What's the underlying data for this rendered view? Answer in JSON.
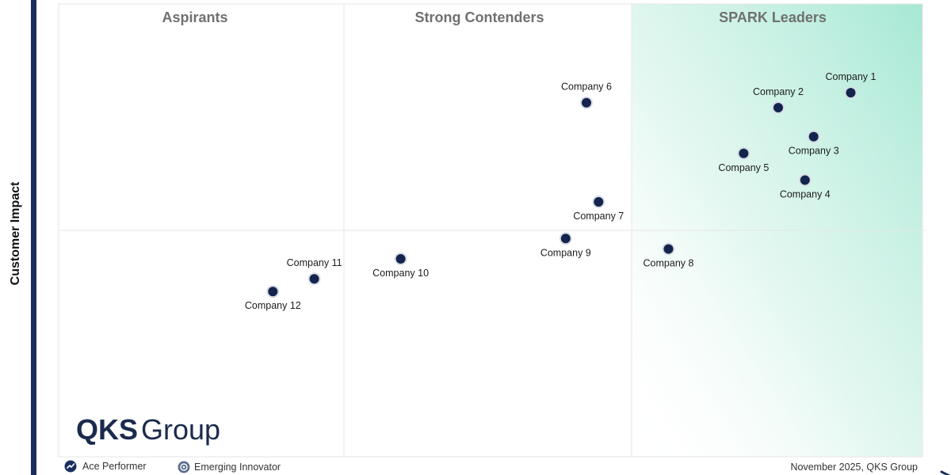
{
  "chart_data": {
    "type": "scatter",
    "quadrants": [
      {
        "label": "Aspirants"
      },
      {
        "label": "Strong Contenders"
      },
      {
        "label": "SPARK Leaders"
      }
    ],
    "ylabel": "Customer Impact",
    "xlabel": "",
    "xlim": [
      0,
      100
    ],
    "ylim": [
      0,
      100
    ],
    "colors": {
      "point": "#13254d",
      "axis_bar": "#1b2f5e",
      "grid": "#e6e6e6",
      "leader_gradient": "#a6e8d4",
      "title": "#707070"
    },
    "points": [
      {
        "label": "Company 1",
        "x": 91.7,
        "y": 80.4,
        "label_pos": "above"
      },
      {
        "label": "Company 2",
        "x": 83.3,
        "y": 77.1,
        "label_pos": "above"
      },
      {
        "label": "Company 3",
        "x": 87.4,
        "y": 70.7,
        "label_pos": "below"
      },
      {
        "label": "Company 4",
        "x": 86.4,
        "y": 61.1,
        "label_pos": "below"
      },
      {
        "label": "Company 5",
        "x": 79.3,
        "y": 67.0,
        "label_pos": "below"
      },
      {
        "label": "Company 6",
        "x": 61.1,
        "y": 78.2,
        "label_pos": "above"
      },
      {
        "label": "Company 7",
        "x": 62.5,
        "y": 56.3,
        "label_pos": "below"
      },
      {
        "label": "Company 8",
        "x": 70.6,
        "y": 45.9,
        "label_pos": "below"
      },
      {
        "label": "Company 9",
        "x": 58.7,
        "y": 48.2,
        "label_pos": "below"
      },
      {
        "label": "Company 10",
        "x": 39.6,
        "y": 43.7,
        "label_pos": "below"
      },
      {
        "label": "Company 11",
        "x": 29.6,
        "y": 39.3,
        "label_pos": "above"
      },
      {
        "label": "Company 12",
        "x": 24.8,
        "y": 36.5,
        "label_pos": "below"
      }
    ]
  },
  "logo": {
    "strong": "QKS",
    "light": "Group"
  },
  "legend": [
    {
      "label": "Ace Performer",
      "icon": "ace-performer-icon"
    },
    {
      "label": "Emerging Innovator",
      "icon": "emerging-innovator-icon"
    }
  ],
  "footer": {
    "credit": "November 2025, QKS Group"
  }
}
